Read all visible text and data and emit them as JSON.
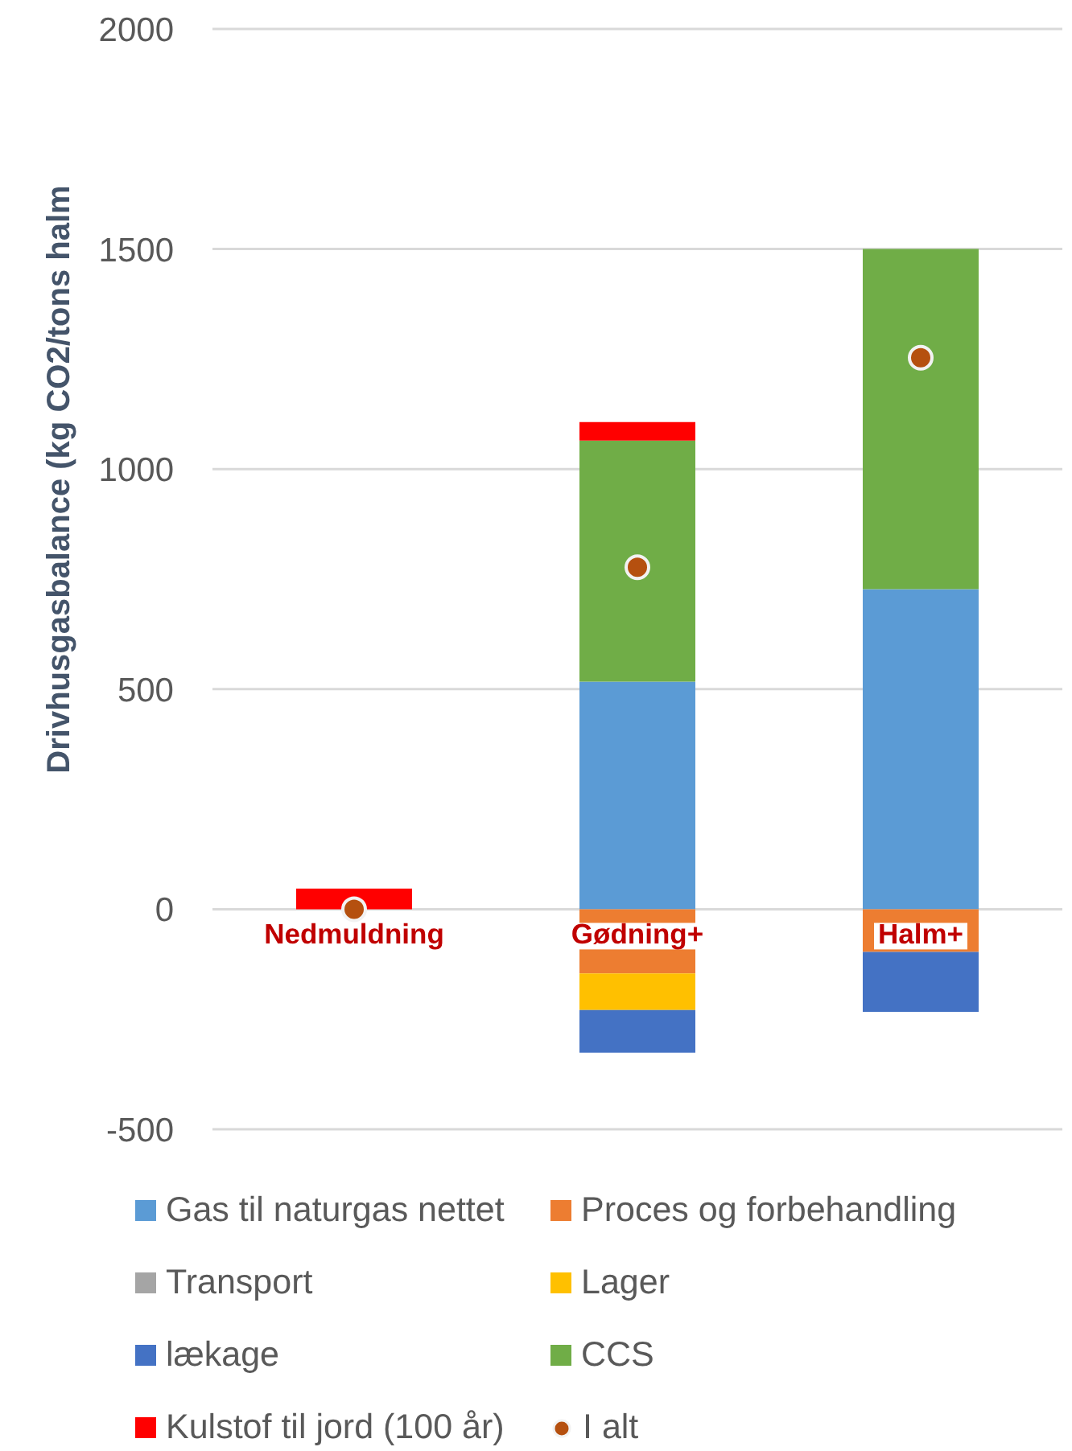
{
  "chart_data": {
    "type": "bar",
    "stacked": true,
    "ylabel": "Drivhusgasbalance (kg CO2/tons halm",
    "categories": [
      "Nedmuldning",
      "Gødning+",
      "Halm+"
    ],
    "series": [
      {
        "name": "Gas til naturgas nettet",
        "color": "#5b9bd5",
        "values": [
          null,
          517,
          727
        ]
      },
      {
        "name": "Proces og forbehandling",
        "color": "#ed7d31",
        "values": [
          null,
          -146,
          -97
        ]
      },
      {
        "name": "Transport",
        "color": "#a5a5a5",
        "values": [
          null,
          null,
          null
        ]
      },
      {
        "name": "Lager",
        "color": "#ffc000",
        "values": [
          null,
          -83,
          null
        ]
      },
      {
        "name": "lækage",
        "color": "#4472c4",
        "values": [
          null,
          -97,
          -136
        ]
      },
      {
        "name": "CCS",
        "color": "#70ad47",
        "values": [
          null,
          548,
          773
        ]
      },
      {
        "name": "Kulstof til jord (100 år)",
        "color": "#ff0000",
        "values": [
          47,
          42,
          null
        ]
      },
      {
        "name": "I alt",
        "type": "scatter",
        "color": "#b5500f",
        "x": [
          "Nedmuldning",
          "Gødning+",
          "Halm+"
        ],
        "values": [
          0,
          777,
          1253
        ],
        "marker": "circle"
      }
    ],
    "ylim": [
      -500,
      2000
    ],
    "yticks": [
      -500,
      0,
      500,
      1000,
      1500,
      2000
    ],
    "grid": "y",
    "legend": "bottom"
  }
}
